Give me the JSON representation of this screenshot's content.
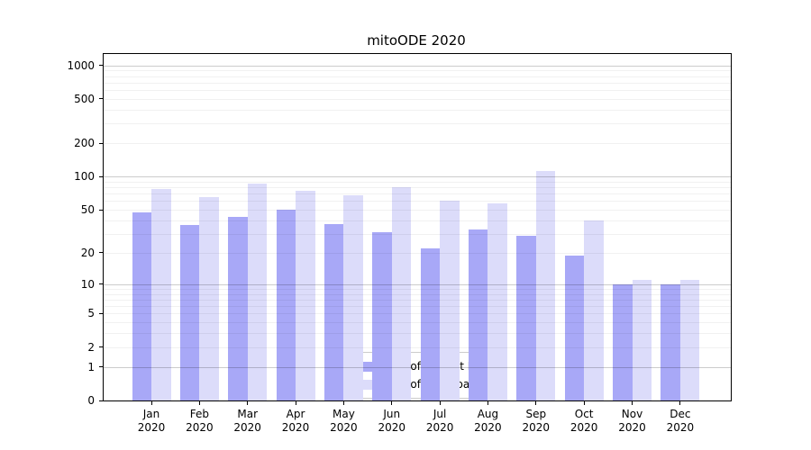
{
  "chart_data": {
    "type": "bar",
    "title": "mitoODE 2020",
    "categories": [
      "Jan 2020",
      "Feb 2020",
      "Mar 2020",
      "Apr 2020",
      "May 2020",
      "Jun 2020",
      "Jul 2020",
      "Aug 2020",
      "Sep 2020",
      "Oct 2020",
      "Nov 2020",
      "Dec 2020"
    ],
    "series": [
      {
        "name": "Nb of distinct IPs",
        "color": "#a8a8f7",
        "values": [
          47,
          36,
          43,
          50,
          37,
          31,
          22,
          33,
          29,
          19,
          10,
          10
        ]
      },
      {
        "name": "Nb of downloads",
        "color": "#dcdcfa",
        "values": [
          77,
          65,
          86,
          75,
          68,
          80,
          61,
          57,
          112,
          40,
          11,
          11
        ]
      }
    ],
    "xlabel": "",
    "ylabel": "",
    "y_scale": "log10(1+v)",
    "y_ticks": [
      1000,
      500,
      200,
      100,
      50,
      20,
      10,
      5,
      2,
      1,
      0
    ],
    "y_minor_ticks": [
      2,
      3,
      4,
      5,
      6,
      7,
      8,
      9,
      20,
      30,
      40,
      50,
      60,
      70,
      80,
      90,
      200,
      300,
      400,
      500,
      600,
      700,
      800,
      900
    ],
    "ylim": [
      0,
      1265
    ],
    "grid": true,
    "legend_position": "lower center"
  },
  "colors": {
    "bar_distinct_ips": "#a8a8f7",
    "bar_downloads": "#dcdcfa",
    "grid_major": "rgba(0,0,0,0.20)",
    "grid_minor": "rgba(0,0,0,0.055)",
    "spine": "#000000",
    "legend_border": "#cccccc"
  }
}
